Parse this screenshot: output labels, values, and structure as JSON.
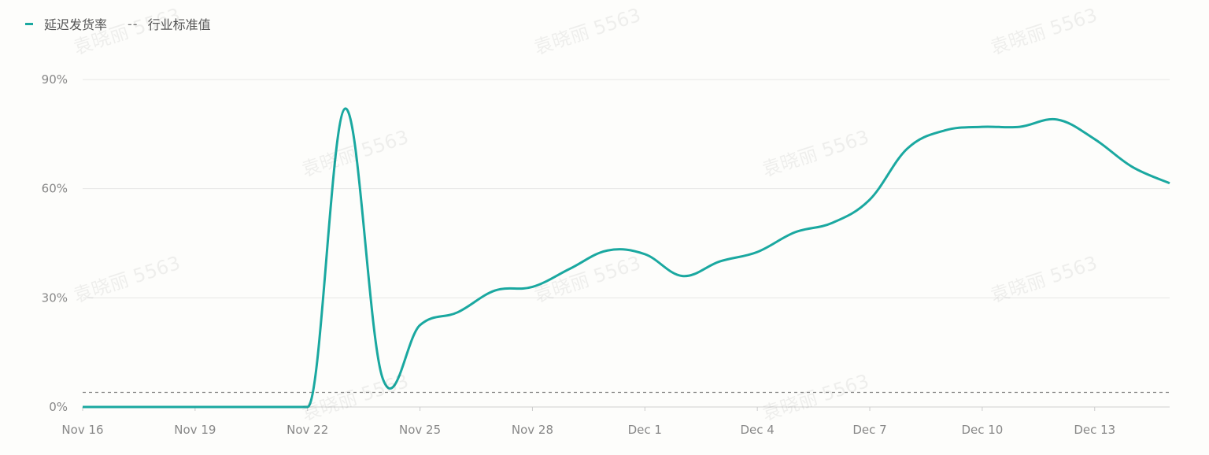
{
  "watermark": "袁晓丽 5563",
  "chart_data": {
    "type": "line",
    "title": "",
    "xlabel": "",
    "ylabel": "",
    "legend_position": "top-left",
    "grid": true,
    "ylim": [
      0,
      90
    ],
    "y_ticks": [
      "0%",
      "30%",
      "60%",
      "90%"
    ],
    "y_tick_values": [
      0,
      30,
      60,
      90
    ],
    "x_tick_labels": [
      "Nov 16",
      "Nov 19",
      "Nov 22",
      "Nov 25",
      "Nov 28",
      "Dec 1",
      "Dec 4",
      "Dec 7",
      "Dec 10",
      "Dec 13"
    ],
    "x": [
      "Nov 16",
      "Nov 17",
      "Nov 18",
      "Nov 19",
      "Nov 20",
      "Nov 21",
      "Nov 22",
      "Nov 23",
      "Nov 24",
      "Nov 25",
      "Nov 26",
      "Nov 27",
      "Nov 28",
      "Nov 29",
      "Nov 30",
      "Dec 1",
      "Dec 2",
      "Dec 3",
      "Dec 4",
      "Dec 5",
      "Dec 6",
      "Dec 7",
      "Dec 8",
      "Dec 9",
      "Dec 10",
      "Dec 11",
      "Dec 12",
      "Dec 13",
      "Dec 14",
      "Dec 15"
    ],
    "series": [
      {
        "name": "延迟发货率",
        "color": "#1aa8a0",
        "style": "solid",
        "values": [
          0,
          0,
          0,
          0,
          0,
          0,
          0,
          82,
          8,
          22.5,
          26,
          32,
          33,
          38,
          43,
          42,
          36,
          40,
          42.6,
          48,
          50.6,
          57,
          71,
          76,
          77,
          77,
          79,
          73.6,
          66,
          61.5
        ]
      },
      {
        "name": "行业标准值",
        "color": "#888888",
        "style": "dashed",
        "value": 4
      }
    ]
  }
}
